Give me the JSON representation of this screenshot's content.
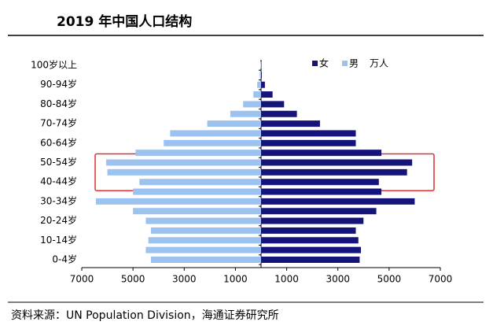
{
  "chart_data": {
    "type": "bar",
    "orientation": "horizontal",
    "title": "2019 年中国人口结构",
    "unit": "万人",
    "source": "资料来源：UN Population Division，海通证券研究所",
    "categories": [
      "0-4岁",
      null,
      "10-14岁",
      null,
      "20-24岁",
      null,
      "30-34岁",
      null,
      "40-44岁",
      null,
      "50-54岁",
      null,
      "60-64岁",
      null,
      "70-74岁",
      null,
      "80-84岁",
      null,
      "90-94岁",
      null,
      "100岁以上"
    ],
    "series": [
      {
        "name": "女",
        "color": "#14147a",
        "values": [
          3850,
          3900,
          3800,
          3700,
          4000,
          4500,
          6000,
          4700,
          4600,
          5700,
          5900,
          4700,
          3700,
          3700,
          2300,
          1400,
          900,
          450,
          150,
          30,
          5
        ]
      },
      {
        "name": "男",
        "color": "#9cc3f0",
        "values": [
          -4300,
          -4500,
          -4400,
          -4300,
          -4500,
          -5000,
          -6450,
          -5000,
          -4750,
          -6000,
          -6050,
          -4900,
          -3800,
          -3550,
          -2100,
          -1200,
          -700,
          -300,
          -150,
          -50,
          -20
        ]
      }
    ],
    "xlim": [
      -7000,
      7000
    ],
    "xticks": [
      {
        "value": -7000,
        "label": "7000"
      },
      {
        "value": -5000,
        "label": "5000"
      },
      {
        "value": -3000,
        "label": "3000"
      },
      {
        "value": -1000,
        "label": "1000"
      },
      1000,
      3000,
      5000,
      7000
    ]
  }
}
